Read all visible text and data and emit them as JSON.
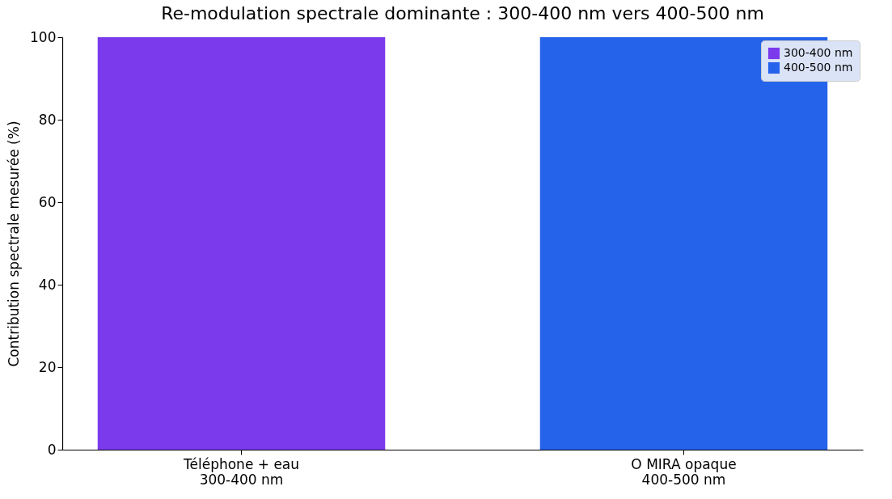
{
  "chart_data": {
    "type": "bar",
    "title": "Re-modulation spectrale dominante : 300-400 nm vers 400-500 nm",
    "ylabel": "Contribution spectrale mesurée (%)",
    "categories": [
      "Téléphone + eau\n300-400 nm",
      "O MIRA opaque\n400-500 nm"
    ],
    "series": [
      {
        "name": "300-400 nm",
        "color": "#7c3aed",
        "values": [
          100,
          null
        ]
      },
      {
        "name": "400-500 nm",
        "color": "#2563eb",
        "values": [
          null,
          100
        ]
      }
    ],
    "ylim": [
      0,
      100
    ],
    "yticks": [
      0,
      20,
      40,
      60,
      80,
      100
    ],
    "grid": false,
    "legend": "top right"
  }
}
